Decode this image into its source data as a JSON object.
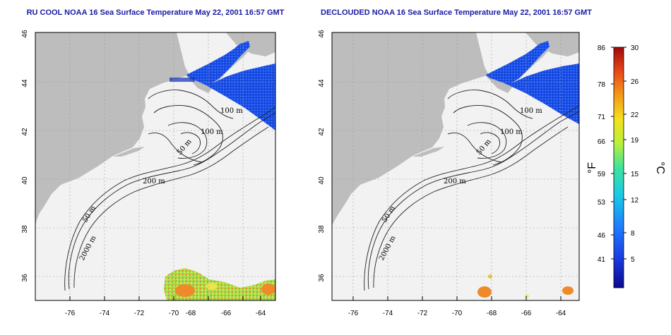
{
  "panels": [
    {
      "title": "RU COOL NOAA 16 Sea Surface Temperature May 22, 2001 16:57 GMT",
      "contour_labels": [
        "100 m",
        "100 m",
        "50 m",
        "200 m",
        "50 m",
        "2000 m"
      ]
    },
    {
      "title": "DECLOUDED NOAA 16 Sea Surface Temperature May 22, 2001 16:57 GMT",
      "contour_labels": [
        "100 m",
        "100 m",
        "50 m",
        "200 m",
        "50 m",
        "2000 m"
      ]
    }
  ],
  "axes": {
    "x_ticks": [
      "-76",
      "-74",
      "-72",
      "-70",
      "-68",
      "-66",
      "-64"
    ],
    "y_ticks": [
      "36",
      "38",
      "40",
      "42",
      "44",
      "46"
    ]
  },
  "colorbar": {
    "fahrenheit_unit": "°F",
    "celsius_unit": "°C",
    "fahrenheit_ticks": [
      "86",
      "78",
      "71",
      "66",
      "59",
      "53",
      "46",
      "41"
    ],
    "celsius_ticks": [
      "30",
      "26",
      "22",
      "19",
      "15",
      "12",
      "8",
      "5"
    ],
    "colors": [
      "#0a0a8c",
      "#1a3ae0",
      "#1e7bff",
      "#18c8e8",
      "#3fe39c",
      "#b8f03a",
      "#f5e01e",
      "#f59a18",
      "#e8481a",
      "#a00808"
    ]
  },
  "colors": {
    "land": "#bdbdbd",
    "water_blue": "#1c4fe8",
    "water_blue_dark": "#0d2fb8",
    "warm_yellow": "#f0e24a",
    "warm_orange": "#ee8a2a",
    "title_blue": "#1a1aa6"
  }
}
